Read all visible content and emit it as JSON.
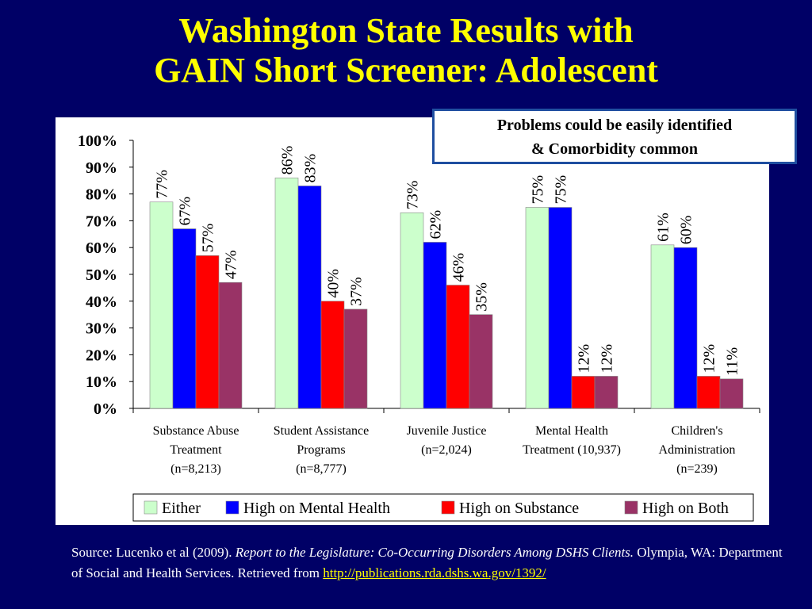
{
  "title_line1": "Washington State Results with",
  "title_line2": "GAIN Short Screener:  Adolescent",
  "callout": {
    "line1": "Problems could be easily identified",
    "line2": "& Comorbidity common"
  },
  "source": {
    "prefix": "Source:  Lucenko et al (2009). ",
    "italic": "Report to the Legislature: Co-Occurring Disorders Among DSHS Clients.",
    "middle": "  Olympia, WA: Department of Social and Health Services. Retrieved from ",
    "link": "http://publications.rda.dshs.wa.gov/1392/"
  },
  "chart_data": {
    "type": "bar",
    "categories": [
      [
        "Substance Abuse",
        "Treatment",
        "(n=8,213)"
      ],
      [
        "Student Assistance",
        "Programs",
        "(n=8,777)"
      ],
      [
        "Juvenile Justice",
        "(n=2,024)"
      ],
      [
        "Mental Health",
        "Treatment (10,937)"
      ],
      [
        "Children's",
        "Administration",
        "(n=239)"
      ]
    ],
    "series": [
      {
        "name": "Either",
        "color": "#ccffcc",
        "values": [
          77,
          86,
          73,
          75,
          61
        ]
      },
      {
        "name": "High on Mental Health",
        "color": "#0000ff",
        "values": [
          67,
          83,
          62,
          75,
          60
        ]
      },
      {
        "name": "High on Substance",
        "color": "#ff0000",
        "values": [
          57,
          40,
          46,
          12,
          12
        ]
      },
      {
        "name": "High on Both",
        "color": "#993366",
        "values": [
          47,
          37,
          35,
          12,
          11
        ]
      }
    ],
    "data_labels": [
      [
        "77%",
        "67%",
        "57%",
        "47%"
      ],
      [
        "86%",
        "83%",
        "40%",
        "37%"
      ],
      [
        "73%",
        "62%",
        "46%",
        "35%"
      ],
      [
        "75%",
        "75%",
        "12%",
        "12%"
      ],
      [
        "61%",
        "60%",
        "12%",
        "11%"
      ]
    ],
    "yticks": [
      "0%",
      "10%",
      "20%",
      "30%",
      "40%",
      "50%",
      "60%",
      "70%",
      "80%",
      "90%",
      "100%"
    ],
    "ylim": [
      0,
      100
    ],
    "grid": false,
    "legend_position": "bottom-right"
  }
}
